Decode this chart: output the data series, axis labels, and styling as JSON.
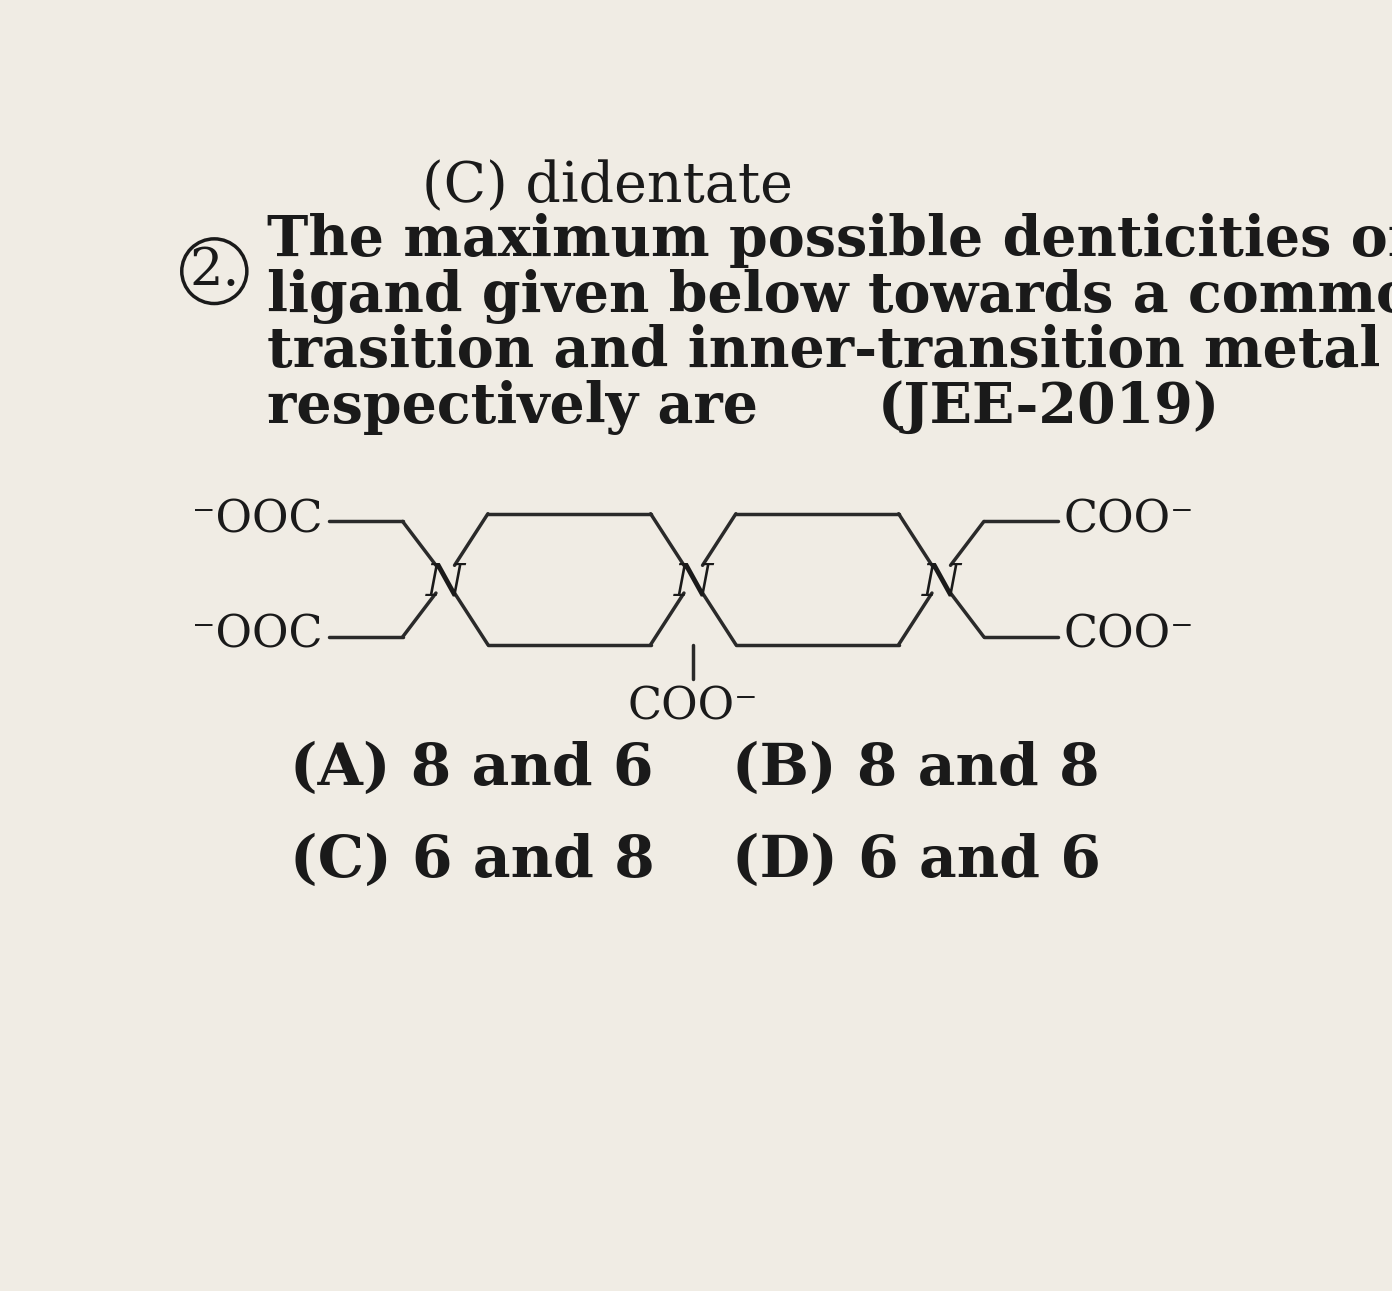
{
  "background_color": "#f0ece4",
  "title_top": "(C) didentate",
  "question_number": "2.",
  "question_text_line1": "The maximum possible denticities of a",
  "question_text_line2": "ligand given below towards a common",
  "question_text_line3": "trasition and inner-transition metal ion,",
  "question_text_line4": "respectively are",
  "reference": "(JEE-2019)",
  "options": [
    "(A) 8 and 6",
    "(B) 8 and 8",
    "(C) 6 and 8",
    "(D) 6 and 6"
  ],
  "text_color": "#1a1a1a",
  "line_color": "#2a2a2a",
  "font_size_text": 40,
  "font_size_option": 40,
  "font_size_molecule": 32,
  "N1x": 3.5,
  "N1y": 7.4,
  "N2x": 6.7,
  "N2y": 7.4,
  "N3x": 9.9,
  "N3y": 7.4
}
